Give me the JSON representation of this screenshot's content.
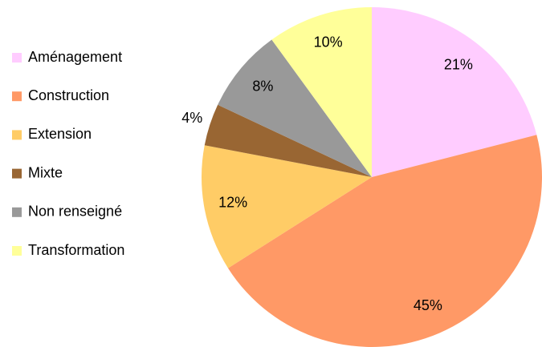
{
  "chart_data": {
    "type": "pie",
    "categories": [
      "Aménagement",
      "Construction",
      "Extension",
      "Mixte",
      "Non renseigné",
      "Transformation"
    ],
    "values": [
      21,
      45,
      12,
      4,
      8,
      10
    ],
    "value_labels": [
      "21%",
      "45%",
      "12%",
      "4%",
      "8%",
      "10%"
    ],
    "colors": [
      "#ffccff",
      "#ff9966",
      "#ffcc66",
      "#996633",
      "#999999",
      "#ffff99"
    ],
    "legend": "left"
  }
}
